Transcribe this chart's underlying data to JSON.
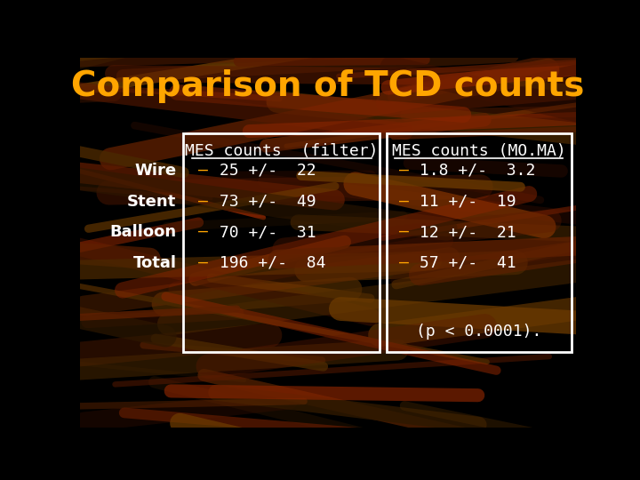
{
  "title": "Comparison of TCD counts",
  "title_color": "#FFA500",
  "title_fontsize": 28,
  "row_labels": [
    "Wire",
    "Stent",
    "Balloon",
    "Total"
  ],
  "row_label_color": "#FFFFFF",
  "col1_header": "MES counts  (filter)",
  "col2_header": "MES counts (MO.MA)",
  "header_color": "#FFFFFF",
  "col1_rows": [
    [
      "–",
      " 25 +/-  22"
    ],
    [
      "–",
      " 73 +/-  49"
    ],
    [
      "–",
      " 70 +/-  31"
    ],
    [
      "–",
      " 196 +/-  84"
    ]
  ],
  "col2_rows": [
    [
      "–",
      " 1.8 +/-  3.2"
    ],
    [
      "–",
      " 11 +/-  19"
    ],
    [
      "–",
      " 12 +/-  21"
    ],
    [
      "–",
      " 57 +/-  41"
    ]
  ],
  "data_color": "#FFFFFF",
  "dash_color": "#FFA500",
  "footnote": "(p < 0.0001).",
  "footnote_color": "#FFFFFF",
  "box_edge_color": "#FFFFFF",
  "background_color": "#000000",
  "bg_line_colors": [
    "#8B2500",
    "#5C1A00",
    "#3D1000",
    "#6B3A00",
    "#4A2800",
    "#2E1800",
    "#7A3000",
    "#602000"
  ]
}
